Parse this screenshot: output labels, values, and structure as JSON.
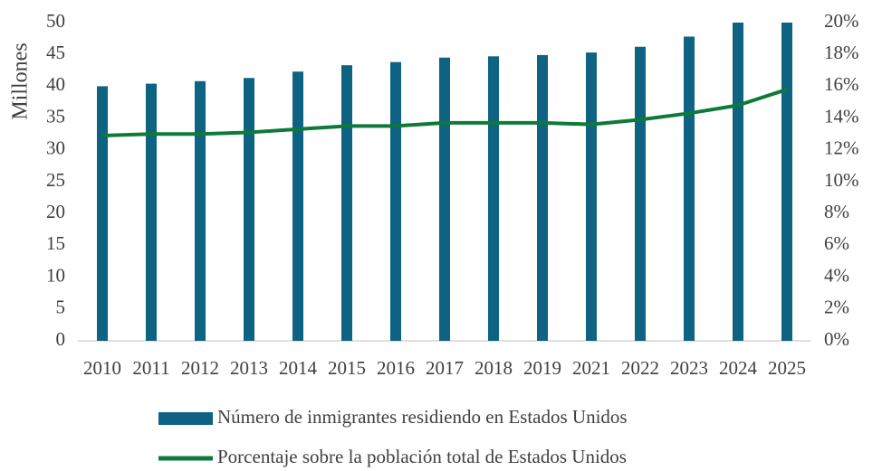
{
  "chart_data": {
    "type": "bar_line",
    "y_label": "Millones",
    "categories": [
      "2010",
      "2011",
      "2012",
      "2013",
      "2014",
      "2015",
      "2016",
      "2017",
      "2018",
      "2019",
      "2021",
      "2022",
      "2023",
      "2024",
      "2025"
    ],
    "series": [
      {
        "name": "Número de inmigrantes residiendo en Estados Unidos",
        "type": "bar",
        "color": "#0e6282",
        "values": [
          40,
          40.4,
          40.8,
          41.3,
          42.3,
          43.3,
          43.8,
          44.5,
          44.7,
          44.9,
          45.3,
          46.2,
          47.8,
          50,
          50
        ]
      },
      {
        "name": "Porcentaje sobre la población total de Estados Unidos",
        "type": "line",
        "axis": "y2",
        "color": "#0e7a3a",
        "values": [
          12.9,
          13.0,
          13.0,
          13.1,
          13.3,
          13.5,
          13.5,
          13.7,
          13.7,
          13.7,
          13.6,
          13.9,
          14.3,
          14.8,
          15.8
        ]
      }
    ],
    "ylim": [
      0,
      50
    ],
    "yticks": [
      0,
      5,
      10,
      15,
      20,
      25,
      30,
      35,
      40,
      45,
      50
    ],
    "y2lim": [
      0,
      20
    ],
    "y2ticks": [
      {
        "value": 0,
        "label": "0%"
      },
      {
        "value": 2,
        "label": "2%"
      },
      {
        "value": 4,
        "label": "4%"
      },
      {
        "value": 6,
        "label": "6%"
      },
      {
        "value": 8,
        "label": "8%"
      },
      {
        "value": 10,
        "label": "10%"
      },
      {
        "value": 12,
        "label": "12%"
      },
      {
        "value": 14,
        "label": "14%"
      },
      {
        "value": 16,
        "label": "16%"
      },
      {
        "value": 18,
        "label": "18%"
      },
      {
        "value": 20,
        "label": "20%"
      }
    ],
    "legend": "bottom"
  }
}
